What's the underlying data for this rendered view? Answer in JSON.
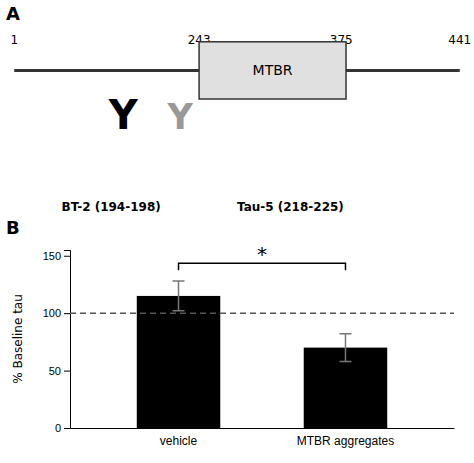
{
  "chart_data": [
    {
      "type": "diagram",
      "title": "A",
      "annotations": [
        "1",
        "243",
        "375",
        "441",
        "MTBR",
        "Y",
        "Y",
        "BT-2 (194-198)",
        "Tau-5 (218-225)"
      ]
    },
    {
      "type": "bar",
      "title": "B",
      "categories": [
        "vehicle",
        "MTBR aggregates"
      ],
      "values": [
        115,
        70
      ],
      "errors": [
        13,
        12
      ],
      "color": "#000000",
      "ylim": [
        0,
        155
      ],
      "yticks": [
        0,
        50,
        100,
        150
      ],
      "ylabel": "% Baseline tau",
      "reference_line": 100,
      "annotations": [
        "*"
      ]
    }
  ]
}
